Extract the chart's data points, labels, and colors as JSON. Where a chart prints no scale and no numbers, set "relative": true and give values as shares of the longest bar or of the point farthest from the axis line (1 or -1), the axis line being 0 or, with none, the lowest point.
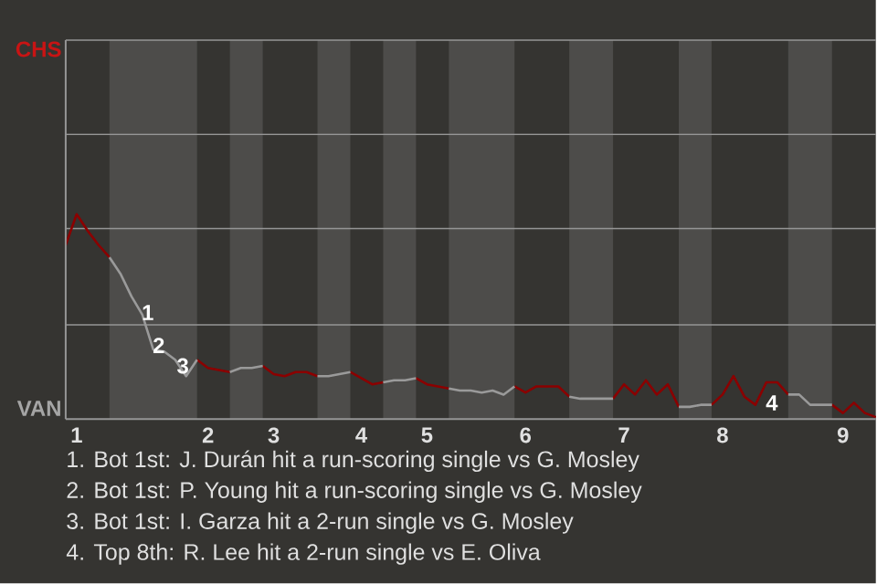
{
  "chart_data": {
    "type": "line",
    "relative": true,
    "categories": [
      null,
      "1",
      null,
      null,
      null,
      null,
      null,
      null,
      null,
      null,
      null,
      null,
      null,
      "2",
      null,
      null,
      null,
      null,
      null,
      "3",
      null,
      null,
      null,
      null,
      null,
      null,
      null,
      "4",
      null,
      null,
      null,
      null,
      null,
      "5",
      null,
      null,
      null,
      null,
      null,
      null,
      null,
      null,
      "6",
      null,
      null,
      null,
      null,
      null,
      null,
      null,
      null,
      "7",
      null,
      null,
      null,
      null,
      null,
      null,
      null,
      null,
      "8",
      null,
      null,
      null,
      null,
      null,
      null,
      null,
      null,
      null,
      null,
      "9",
      null,
      null,
      null
    ],
    "marker": "none",
    "line_style": "solid",
    "ref_lines": [
      {
        "axis": "y",
        "value": 0.46,
        "color": "#969696"
      },
      {
        "axis": "y",
        "value": 0.93,
        "color": "#969696"
      },
      {
        "axis": "y",
        "value": 1.39,
        "color": "#969696"
      },
      {
        "axis": "y",
        "value": 1.85,
        "color": "#969696"
      }
    ],
    "series": [
      {
        "color": "#8b0000",
        "values": [
          0.85,
          1,
          0.92,
          0.85,
          0.79,
          null,
          null,
          null,
          null,
          null,
          null,
          null,
          0.29,
          0.25,
          0.24,
          0.23,
          null,
          null,
          0.26,
          0.22,
          0.21,
          0.23,
          0.23,
          0.21,
          null,
          null,
          0.23,
          0.2,
          0.17,
          0.18,
          null,
          null,
          0.2,
          0.17,
          0.16,
          0.15,
          null,
          null,
          null,
          null,
          null,
          0.16,
          0.13,
          0.16,
          0.16,
          0.16,
          0.11,
          null,
          null,
          null,
          0.1,
          0.17,
          0.12,
          0.19,
          0.12,
          0.17,
          0.06,
          null,
          null,
          0.07,
          0.12,
          0.21,
          0.11,
          0.07,
          0.18,
          0.18,
          0.12,
          null,
          null,
          null,
          0.07,
          0.03,
          0.08,
          0.03,
          0.01
        ]
      },
      {
        "color": "#9a9a9a",
        "values": [
          null,
          null,
          null,
          null,
          0.79,
          0.71,
          0.6,
          0.51,
          0.34,
          0.33,
          0.29,
          0.21,
          0.29,
          null,
          null,
          0.23,
          0.25,
          0.25,
          0.26,
          null,
          null,
          null,
          null,
          0.21,
          0.21,
          0.22,
          0.23,
          null,
          null,
          0.18,
          0.19,
          0.19,
          0.2,
          null,
          null,
          0.15,
          0.14,
          0.14,
          0.13,
          0.14,
          0.12,
          0.16,
          null,
          null,
          null,
          null,
          0.11,
          0.1,
          0.1,
          0.1,
          0.1,
          null,
          null,
          null,
          null,
          null,
          0.06,
          0.06,
          0.07,
          0.07,
          null,
          null,
          null,
          null,
          null,
          null,
          0.12,
          0.12,
          0.07,
          0.07,
          0.07,
          null,
          null,
          null,
          null
        ]
      }
    ],
    "annotations": [
      "1",
      "2",
      "3",
      "4",
      "1. Bot 1st: J. Durán hit a run-scoring single vs G. Mosley",
      "2. Bot 1st: P. Young hit a run-scoring single vs G. Mosley",
      "3. Bot 1st: I. Garza hit a 2-run single vs G. Mosley",
      "4. Top 8th: R. Lee hit a 2-run single vs E. Oliva",
      "CHS",
      "VAN"
    ]
  }
}
